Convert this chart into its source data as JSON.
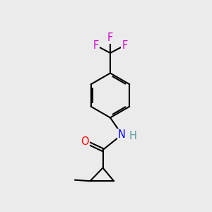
{
  "bg_color": "#ebebeb",
  "bond_color": "#000000",
  "bond_width": 1.5,
  "atom_colors": {
    "O": "#ff0000",
    "N": "#0000ff",
    "F": "#cc00cc",
    "H": "#5f9ea0",
    "C": "#000000"
  },
  "font_size": 10.5
}
